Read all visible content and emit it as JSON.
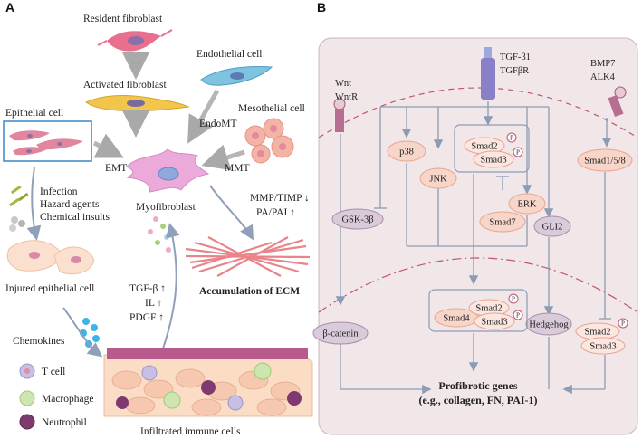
{
  "panel_a": {
    "letter": "A",
    "resident_fibroblast": "Resident fibroblast",
    "activated_fibroblast": "Activated fibroblast",
    "endothelial_cell": "Endothelial cell",
    "mesothelial_cell": "Mesothelial cell",
    "epithelial_cell": "Epithelial cell",
    "emt": "EMT",
    "endomt": "EndoMT",
    "mmt": "MMT",
    "myofibroblast": "Myofibroblast",
    "injury_causes": [
      "Infection",
      "Hazard agents",
      "Chemical insults"
    ],
    "mmp_timp": "MMP/TIMP ↓",
    "pa_pai": "PA/PAI ↑",
    "accumulation_ecm": "Accumulation of ECM",
    "injured_epithelial": "Injured epithelial cell",
    "cytokines": [
      "TGF-β ↑",
      "IL ↑",
      "PDGF ↑"
    ],
    "chemokines": "Chemokines",
    "legend": [
      "T cell",
      "Macrophage",
      "Neutrophil"
    ],
    "infiltrated": "Infiltrated immune cells"
  },
  "panel_b": {
    "letter": "B",
    "wnt": "Wnt",
    "wntr": "WntR",
    "tgfb1": "TGF-β1",
    "tgfbr": "TGFβR",
    "bmp7": "BMP7",
    "alk4": "ALK4",
    "p38": "p38",
    "jnk": "JNK",
    "smad2": "Smad2",
    "smad3": "Smad3",
    "phospho": "P",
    "erk": "ERK",
    "smad7": "Smad7",
    "gsk3b": "GSK-3β",
    "gli2": "GLI2",
    "smad158": "Smad1/5/8",
    "hedgehog": "Hedgehog",
    "smad4": "Smad4",
    "beta_catenin": "β-catenin",
    "profibrotic_title": "Profibrotic genes",
    "profibrotic_examples": "(e.g., collagen, FN, PAI-1)"
  },
  "colors": {
    "cell_bg": "#f1e6e8",
    "cell_border": "#c9b6ba",
    "membrane": "#c0547a",
    "node_pink": "#f7d5c9",
    "node_purple": "#d9cbd9",
    "arrow": "#8c9cb3",
    "myofibroblast": "#e9a6d6",
    "ecm": "#e8848a"
  }
}
